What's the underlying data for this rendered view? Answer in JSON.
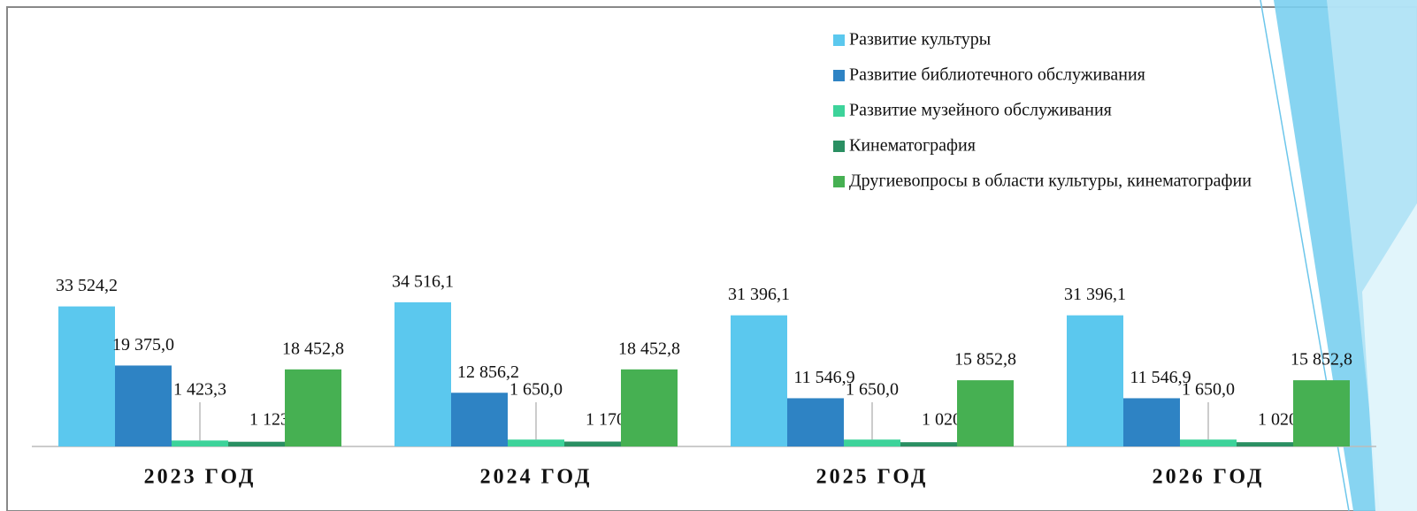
{
  "chart_data": {
    "type": "bar",
    "categories": [
      "2023 ГОД",
      "2024 ГОД",
      "2025 ГОД",
      "2026 ГОД"
    ],
    "series": [
      {
        "name": "Развитие культуры",
        "color": "#5BC8EE",
        "values": [
          33524.2,
          34516.1,
          31396.1,
          31396.1
        ],
        "value_labels": [
          "33 524,2",
          "34 516,1",
          "31 396,1",
          "31 396,1"
        ]
      },
      {
        "name": "Развитие библиотечного обслуживания",
        "color": "#2E83C4",
        "values": [
          19375.0,
          12856.2,
          11546.9,
          11546.9
        ],
        "value_labels": [
          "19 375,0",
          "12 856,2",
          "11 546,9",
          "11 546,9"
        ]
      },
      {
        "name": "Развитие музейного обслуживания",
        "color": "#3DD39A",
        "values": [
          1423.3,
          1650.0,
          1650.0,
          1650.0
        ],
        "value_labels": [
          "1 423,3",
          "1 650,0",
          "1 650,0",
          "1 650,0"
        ]
      },
      {
        "name": "Кинематография",
        "color": "#2A8F62",
        "values": [
          1123.0,
          1170.0,
          1020.0,
          1020.0
        ],
        "value_labels": [
          "1 123,0",
          "1 170,0",
          "1 020,0",
          "1 020,0"
        ]
      },
      {
        "name": "Другиевопросы в области культуры, кинематографии",
        "color": "#46B052",
        "values": [
          18452.8,
          18452.8,
          15852.8,
          15852.8
        ],
        "value_labels": [
          "18 452,8",
          "18 452,8",
          "15 852,8",
          "15 852,8"
        ]
      }
    ],
    "ylim": [
      0,
      40000
    ],
    "legend": "top-right"
  }
}
